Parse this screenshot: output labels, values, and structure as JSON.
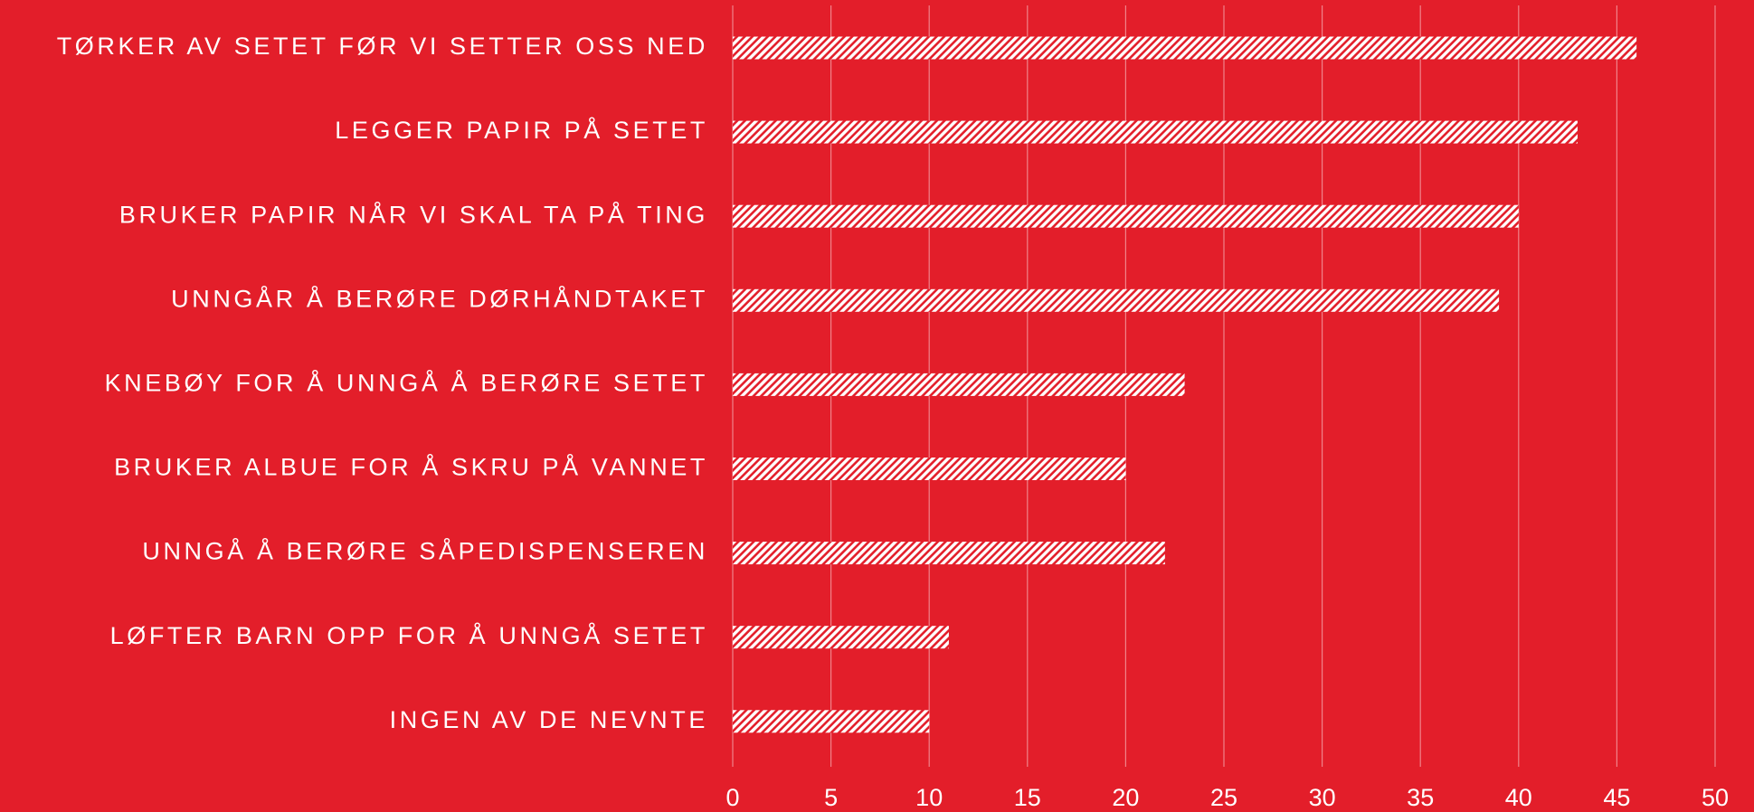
{
  "chart_data": {
    "type": "bar",
    "orientation": "horizontal",
    "categories": [
      "TØRKER AV SETET FØR VI SETTER OSS NED",
      "LEGGER PAPIR PÅ SETET",
      "BRUKER PAPIR NÅR VI SKAL TA PÅ TING",
      "UNNGÅR Å BERØRE DØRHÅNDTAKET",
      "KNEBØY FOR Å UNNGÅ Å BERØRE SETET",
      "BRUKER ALBUE FOR Å SKRU PÅ VANNET",
      "UNNGÅ Å BERØRE SÅPEDISPENSEREN",
      "LØFTER BARN OPP FOR Å UNNGÅ SETET",
      "INGEN AV DE NEVNTE"
    ],
    "values": [
      46,
      43,
      40,
      39,
      23,
      20,
      22,
      11,
      10
    ],
    "color": "#ffffff",
    "pattern": "hatch",
    "xlim": [
      0,
      50
    ],
    "xticks": [
      0,
      5,
      10,
      15,
      20,
      25,
      30,
      35,
      40,
      45,
      50
    ],
    "grid": true
  }
}
